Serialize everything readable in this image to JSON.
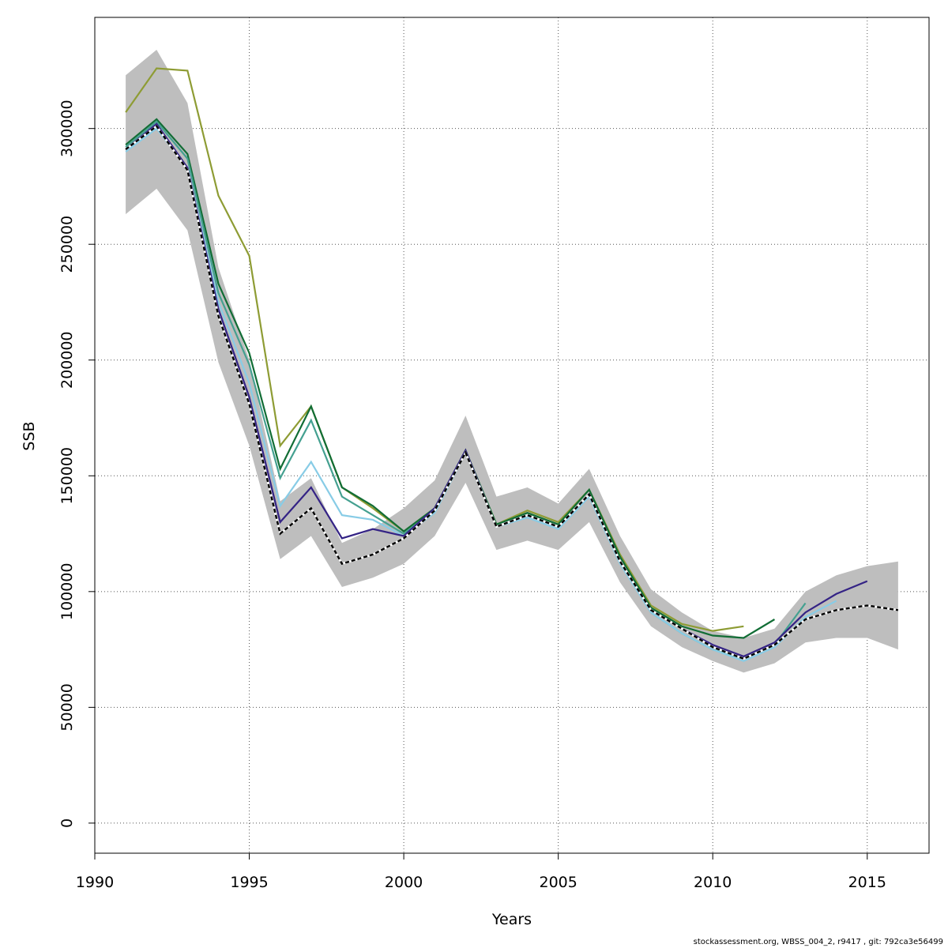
{
  "chart_data": {
    "type": "line",
    "xlabel": "Years",
    "ylabel": "SSB",
    "xlim": [
      1990,
      2017
    ],
    "ylim": [
      -13000,
      348000
    ],
    "xticks": [
      1990,
      1995,
      2000,
      2005,
      2010,
      2015
    ],
    "yticks": [
      0,
      50000,
      100000,
      150000,
      200000,
      250000,
      300000
    ],
    "grid": true,
    "band": {
      "x": [
        1991,
        1992,
        1993,
        1994,
        1995,
        1996,
        1997,
        1998,
        1999,
        2000,
        2001,
        2002,
        2003,
        2004,
        2005,
        2006,
        2007,
        2008,
        2009,
        2010,
        2011,
        2012,
        2013,
        2014,
        2015,
        2016
      ],
      "upper": [
        323000,
        334000,
        311000,
        240000,
        200000,
        139000,
        149000,
        121000,
        127000,
        136000,
        148000,
        176000,
        141000,
        145000,
        138000,
        153000,
        124000,
        101000,
        91000,
        83000,
        80000,
        84000,
        100000,
        107000,
        111000,
        113000
      ],
      "lower": [
        263000,
        274000,
        256000,
        199000,
        163000,
        114000,
        124000,
        102000,
        106000,
        112000,
        124000,
        147000,
        118000,
        122000,
        118000,
        130000,
        104000,
        85000,
        76000,
        70000,
        65000,
        69000,
        78000,
        80000,
        80000,
        75000
      ],
      "color": "#bebebe"
    },
    "series": [
      {
        "color": "#8e9c34",
        "x": [
          1991,
          1992,
          1993,
          1994,
          1995,
          1996,
          1997,
          1998,
          1999,
          2000,
          2001,
          2002,
          2003,
          2004,
          2005,
          2006,
          2007,
          2008,
          2009,
          2010,
          2011
        ],
        "values": [
          307000,
          326000,
          325000,
          271000,
          245000,
          163000,
          180000,
          145000,
          136000,
          126000,
          136000,
          161000,
          129000,
          135000,
          130000,
          144000,
          116000,
          94000,
          86000,
          83000,
          85000
        ]
      },
      {
        "color": "#116d35",
        "x": [
          1991,
          1992,
          1993,
          1994,
          1995,
          1996,
          1997,
          1998,
          1999,
          2000,
          2001,
          2002,
          2003,
          2004,
          2005,
          2006,
          2007,
          2008,
          2009,
          2010,
          2011,
          2012
        ],
        "values": [
          293000,
          304000,
          289000,
          233000,
          203000,
          153000,
          180000,
          145000,
          137000,
          126000,
          136000,
          161000,
          129000,
          134000,
          129000,
          144000,
          115000,
          93000,
          85000,
          81000,
          80000,
          88000
        ]
      },
      {
        "color": "#44a090",
        "x": [
          1991,
          1992,
          1993,
          1994,
          1995,
          1996,
          1997,
          1998,
          1999,
          2000,
          2001,
          2002,
          2003,
          2004,
          2005,
          2006,
          2007,
          2008,
          2009,
          2010,
          2011,
          2012,
          2013
        ],
        "values": [
          292000,
          303000,
          287000,
          229000,
          198000,
          149000,
          174000,
          141000,
          133000,
          125000,
          135000,
          160000,
          128000,
          133000,
          128000,
          142000,
          113000,
          91000,
          82000,
          75000,
          71000,
          77000,
          95000
        ]
      },
      {
        "color": "#88cce6",
        "x": [
          1991,
          1992,
          1993,
          1994,
          1995,
          1996,
          1997,
          1998,
          1999,
          2000,
          2001,
          2002,
          2003,
          2004,
          2005,
          2006,
          2007,
          2008,
          2009,
          2010,
          2011,
          2012,
          2013,
          2014
        ],
        "values": [
          290000,
          300000,
          283000,
          225000,
          190000,
          137000,
          156000,
          133000,
          131000,
          124000,
          134000,
          160000,
          128000,
          132000,
          127000,
          141000,
          112000,
          91000,
          82000,
          75000,
          70000,
          76000,
          89000,
          96000
        ]
      },
      {
        "color": "#342385",
        "x": [
          1991,
          1992,
          1993,
          1994,
          1995,
          1996,
          1997,
          1998,
          1999,
          2000,
          2001,
          2002,
          2003,
          2004,
          2005,
          2006,
          2007,
          2008,
          2009,
          2010,
          2011,
          2012,
          2013,
          2014,
          2015
        ],
        "values": [
          291000,
          302000,
          283000,
          222000,
          184000,
          130000,
          145000,
          123000,
          127000,
          124000,
          136000,
          161000,
          128000,
          133000,
          128000,
          142000,
          113000,
          92000,
          84000,
          77000,
          72000,
          78000,
          91000,
          99000,
          104500
        ]
      },
      {
        "color": "#000000",
        "dashed": true,
        "x": [
          1991,
          1992,
          1993,
          1994,
          1995,
          1996,
          1997,
          1998,
          1999,
          2000,
          2001,
          2002,
          2003,
          2004,
          2005,
          2006,
          2007,
          2008,
          2009,
          2010,
          2011,
          2012,
          2013,
          2014,
          2015,
          2016
        ],
        "values": [
          291000,
          301000,
          282000,
          219000,
          181000,
          125000,
          136000,
          112000,
          116000,
          123000,
          135000,
          160000,
          128000,
          133000,
          128000,
          142000,
          113000,
          92000,
          84000,
          76000,
          71000,
          77000,
          88000,
          92000,
          94000,
          92000
        ]
      }
    ]
  },
  "footer": "stockassessment.org, WBSS_004_2, r9417 , git: 792ca3e56499"
}
